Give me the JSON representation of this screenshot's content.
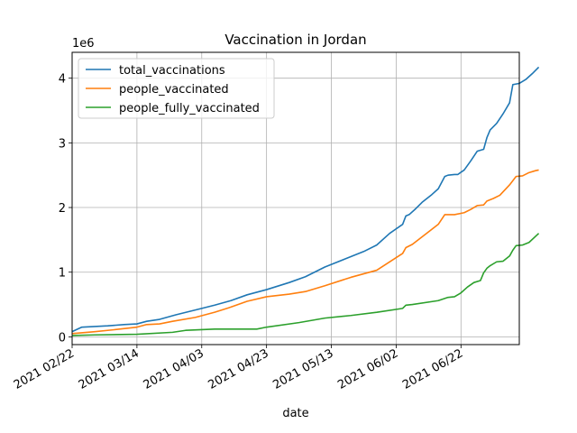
{
  "chart_data": {
    "type": "line",
    "title": "Vaccination in Jordan",
    "xlabel": "date",
    "ylabel": "",
    "y_offset_label": "1e6",
    "x_ticks": [
      "2021 02/22",
      "2021 03/14",
      "2021 04/03",
      "2021 04/23",
      "2021 05/13",
      "2021 06/02",
      "2021 06/22"
    ],
    "x_range": [
      "2021-02-22",
      "2021-07-10"
    ],
    "y_ticks": [
      0,
      1,
      2,
      3,
      4
    ],
    "ylim": [
      -0.12,
      4.4
    ],
    "grid": true,
    "legend_position": "top-left",
    "series": [
      {
        "name": "total_vaccinations",
        "color": "#1f77b4",
        "points": [
          [
            "2021-02-22",
            0.08
          ],
          [
            "2021-02-25",
            0.15
          ],
          [
            "2021-03-01",
            0.16
          ],
          [
            "2021-03-05",
            0.17
          ],
          [
            "2021-03-10",
            0.19
          ],
          [
            "2021-03-14",
            0.2
          ],
          [
            "2021-03-17",
            0.24
          ],
          [
            "2021-03-21",
            0.27
          ],
          [
            "2021-03-26",
            0.34
          ],
          [
            "2021-04-03",
            0.44
          ],
          [
            "2021-04-07",
            0.49
          ],
          [
            "2021-04-12",
            0.56
          ],
          [
            "2021-04-17",
            0.65
          ],
          [
            "2021-04-23",
            0.73
          ],
          [
            "2021-04-30",
            0.84
          ],
          [
            "2021-05-05",
            0.93
          ],
          [
            "2021-05-11",
            1.08
          ],
          [
            "2021-05-17",
            1.2
          ],
          [
            "2021-05-23",
            1.32
          ],
          [
            "2021-05-27",
            1.42
          ],
          [
            "2021-05-31",
            1.6
          ],
          [
            "2021-06-04",
            1.74
          ],
          [
            "2021-06-05",
            1.87
          ],
          [
            "2021-06-06",
            1.89
          ],
          [
            "2021-06-08",
            1.98
          ],
          [
            "2021-06-10",
            2.08
          ],
          [
            "2021-06-13",
            2.2
          ],
          [
            "2021-06-15",
            2.29
          ],
          [
            "2021-06-17",
            2.48
          ],
          [
            "2021-06-18",
            2.5
          ],
          [
            "2021-06-20",
            2.51
          ],
          [
            "2021-06-21",
            2.51
          ],
          [
            "2021-06-23",
            2.58
          ],
          [
            "2021-06-25",
            2.72
          ],
          [
            "2021-06-27",
            2.87
          ],
          [
            "2021-06-29",
            2.9
          ],
          [
            "2021-06-30",
            3.08
          ],
          [
            "2021-07-01",
            3.2
          ],
          [
            "2021-07-03",
            3.3
          ],
          [
            "2021-07-05",
            3.45
          ],
          [
            "2021-07-07",
            3.62
          ],
          [
            "2021-07-08",
            3.9
          ],
          [
            "2021-07-09",
            3.91
          ],
          [
            "2021-07-10",
            3.92
          ],
          [
            "2021-07-12",
            3.98
          ],
          [
            "2021-07-14",
            4.07
          ],
          [
            "2021-07-16",
            4.17
          ]
        ]
      },
      {
        "name": "people_vaccinated",
        "color": "#ff7f0e",
        "points": [
          [
            "2021-02-22",
            0.05
          ],
          [
            "2021-03-01",
            0.08
          ],
          [
            "2021-03-07",
            0.11
          ],
          [
            "2021-03-14",
            0.15
          ],
          [
            "2021-03-17",
            0.19
          ],
          [
            "2021-03-21",
            0.2
          ],
          [
            "2021-03-25",
            0.24
          ],
          [
            "2021-04-01",
            0.3
          ],
          [
            "2021-04-07",
            0.38
          ],
          [
            "2021-04-12",
            0.46
          ],
          [
            "2021-04-17",
            0.55
          ],
          [
            "2021-04-23",
            0.62
          ],
          [
            "2021-04-30",
            0.66
          ],
          [
            "2021-05-05",
            0.7
          ],
          [
            "2021-05-11",
            0.79
          ],
          [
            "2021-05-19",
            0.92
          ],
          [
            "2021-05-27",
            1.03
          ],
          [
            "2021-06-04",
            1.29
          ],
          [
            "2021-06-05",
            1.38
          ],
          [
            "2021-06-07",
            1.43
          ],
          [
            "2021-06-15",
            1.74
          ],
          [
            "2021-06-17",
            1.89
          ],
          [
            "2021-06-20",
            1.89
          ],
          [
            "2021-06-23",
            1.92
          ],
          [
            "2021-06-25",
            1.97
          ],
          [
            "2021-06-27",
            2.03
          ],
          [
            "2021-06-29",
            2.04
          ],
          [
            "2021-06-30",
            2.1
          ],
          [
            "2021-07-02",
            2.14
          ],
          [
            "2021-07-04",
            2.19
          ],
          [
            "2021-07-07",
            2.35
          ],
          [
            "2021-07-09",
            2.48
          ],
          [
            "2021-07-11",
            2.49
          ],
          [
            "2021-07-13",
            2.54
          ],
          [
            "2021-07-15",
            2.57
          ],
          [
            "2021-07-16",
            2.58
          ]
        ]
      },
      {
        "name": "people_fully_vaccinated",
        "color": "#2ca02c",
        "points": [
          [
            "2021-02-22",
            0.02
          ],
          [
            "2021-03-01",
            0.03
          ],
          [
            "2021-03-14",
            0.04
          ],
          [
            "2021-03-25",
            0.07
          ],
          [
            "2021-03-29",
            0.1
          ],
          [
            "2021-04-07",
            0.12
          ],
          [
            "2021-04-20",
            0.12
          ],
          [
            "2021-04-23",
            0.15
          ],
          [
            "2021-05-03",
            0.22
          ],
          [
            "2021-05-11",
            0.29
          ],
          [
            "2021-05-19",
            0.33
          ],
          [
            "2021-05-27",
            0.38
          ],
          [
            "2021-06-04",
            0.44
          ],
          [
            "2021-06-05",
            0.49
          ],
          [
            "2021-06-07",
            0.5
          ],
          [
            "2021-06-15",
            0.56
          ],
          [
            "2021-06-18",
            0.61
          ],
          [
            "2021-06-20",
            0.62
          ],
          [
            "2021-06-22",
            0.68
          ],
          [
            "2021-06-24",
            0.77
          ],
          [
            "2021-06-26",
            0.84
          ],
          [
            "2021-06-28",
            0.87
          ],
          [
            "2021-06-29",
            0.99
          ],
          [
            "2021-06-30",
            1.06
          ],
          [
            "2021-07-01",
            1.1
          ],
          [
            "2021-07-03",
            1.16
          ],
          [
            "2021-07-05",
            1.17
          ],
          [
            "2021-07-07",
            1.25
          ],
          [
            "2021-07-08",
            1.34
          ],
          [
            "2021-07-09",
            1.41
          ],
          [
            "2021-07-11",
            1.42
          ],
          [
            "2021-07-13",
            1.46
          ],
          [
            "2021-07-16",
            1.6
          ]
        ]
      }
    ]
  }
}
